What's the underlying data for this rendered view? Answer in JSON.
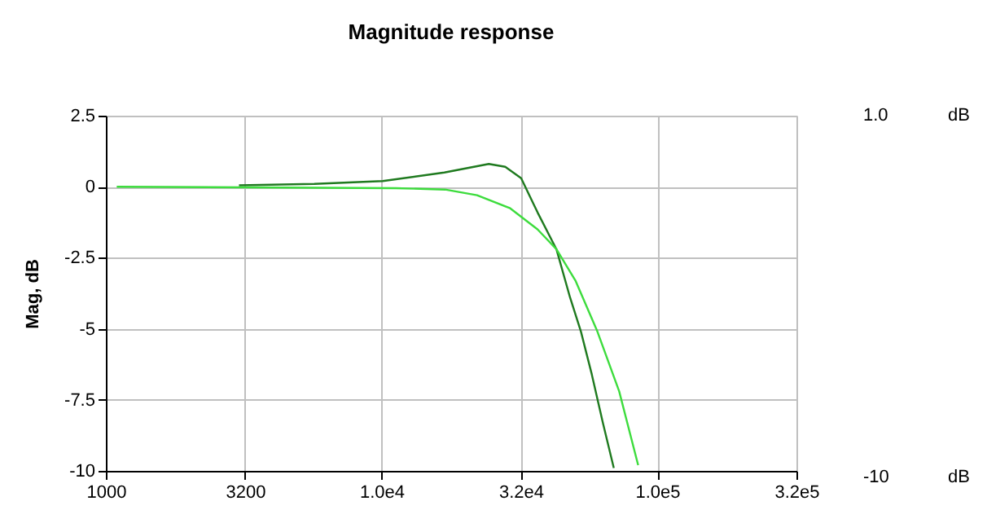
{
  "chart_data": {
    "type": "line",
    "title": "Magnitude response",
    "ylabel": "Mag, dB",
    "log": "x",
    "grid": true,
    "legend": false,
    "marker": "none",
    "line_style": "solid",
    "xlim": [
      1000,
      320000
    ],
    "ylim": [
      -10,
      2.5
    ],
    "xticks": [
      1000,
      3200,
      {
        "value": 10000,
        "label": "1.0e4"
      },
      {
        "value": 32000,
        "label": "3.2e4"
      },
      {
        "value": 100000,
        "label": "1.0e5"
      },
      {
        "value": 320000,
        "label": "3.2e5"
      }
    ],
    "yticks": [
      -10,
      -7.5,
      -5,
      -2.5,
      0,
      2.5
    ],
    "annotations": [
      "1.0",
      "dB",
      "-10",
      "dB"
    ],
    "series": [
      {
        "color": "#1f7a1f",
        "x": [
          3040,
          5700,
          10100,
          16900,
          24500,
          28100,
          32100,
          36800,
          43100,
          48300,
          52900,
          57900,
          63500,
          69600
        ],
        "values": [
          0.05,
          0.1,
          0.2,
          0.5,
          0.8,
          0.7,
          0.3,
          -0.9,
          -2.2,
          -3.9,
          -5.1,
          -6.6,
          -8.3,
          -9.9
        ]
      },
      {
        "color": "#3ddc3d",
        "x": [
          1095,
          11300,
          17000,
          22200,
          29300,
          36800,
          43100,
          50500,
          60700,
          72800,
          85300
        ],
        "values": [
          0,
          -0.05,
          -0.1,
          -0.3,
          -0.76,
          -1.5,
          -2.2,
          -3.3,
          -5.1,
          -7.2,
          -9.8
        ]
      }
    ]
  }
}
